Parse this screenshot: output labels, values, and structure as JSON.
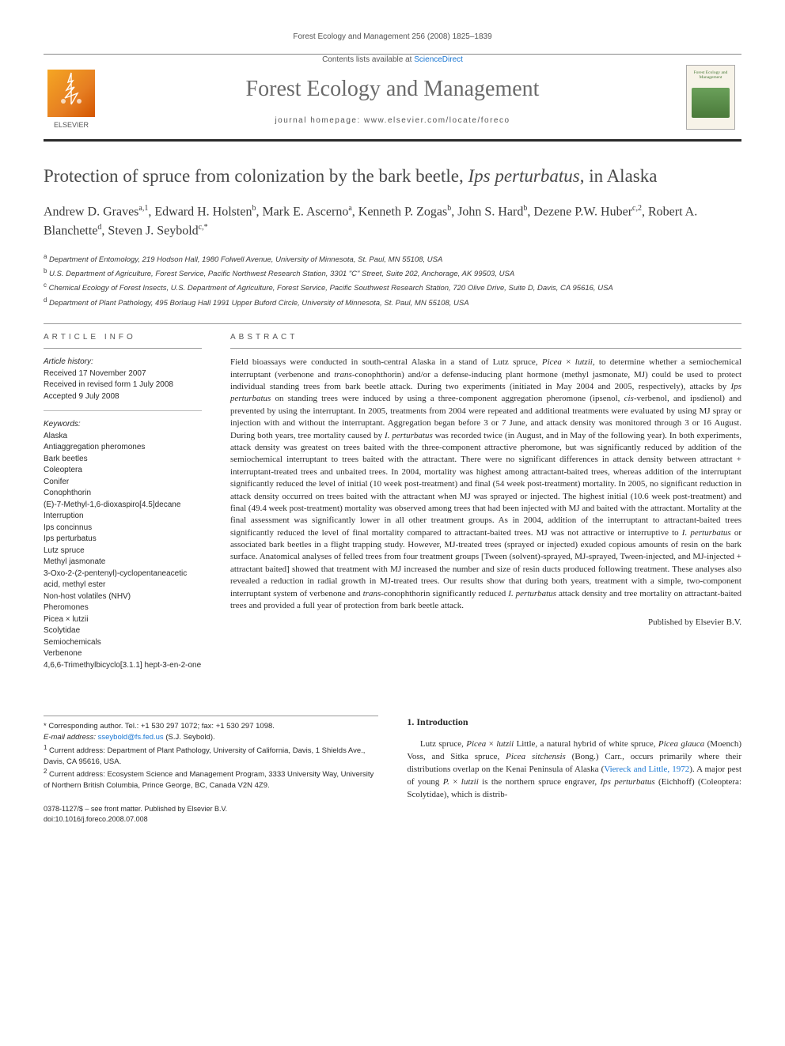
{
  "header": {
    "citation": "Forest Ecology and Management 256 (2008) 1825–1839",
    "contents_prefix": "Contents lists available at ",
    "contents_link": "ScienceDirect",
    "journal_title": "Forest Ecology and Management",
    "homepage": "journal homepage: www.elsevier.com/locate/foreco",
    "publisher": "ELSEVIER",
    "cover_title": "Forest Ecology and Management"
  },
  "title": {
    "pre": "Protection of spruce from colonization by the bark beetle, ",
    "ital": "Ips perturbatus",
    "post": ", in Alaska"
  },
  "authors_html": "Andrew D. Graves<sup>a,1</sup>, Edward H. Holsten<sup>b</sup>, Mark E. Ascerno<sup>a</sup>, Kenneth P. Zogas<sup>b</sup>, John S. Hard<sup>b</sup>, Dezene P.W. Huber<sup>c,2</sup>, Robert A. Blanchette<sup>d</sup>, Steven J. Seybold<sup>c,*</sup>",
  "affils": [
    "<sup>a</sup> Department of Entomology, 219 Hodson Hall, 1980 Folwell Avenue, University of Minnesota, St. Paul, MN 55108, USA",
    "<sup>b</sup> U.S. Department of Agriculture, Forest Service, Pacific Northwest Research Station, 3301 \"C\" Street, Suite 202, Anchorage, AK 99503, USA",
    "<sup>c</sup> Chemical Ecology of Forest Insects, U.S. Department of Agriculture, Forest Service, Pacific Southwest Research Station, 720 Olive Drive, Suite D, Davis, CA 95616, USA",
    "<sup>d</sup> Department of Plant Pathology, 495 Borlaug Hall 1991 Upper Buford Circle, University of Minnesota, St. Paul, MN 55108, USA"
  ],
  "article_info": {
    "head": "ARTICLE INFO",
    "history_head": "Article history:",
    "history": [
      "Received 17 November 2007",
      "Received in revised form 1 July 2008",
      "Accepted 9 July 2008"
    ],
    "keywords_head": "Keywords:",
    "keywords": [
      "Alaska",
      "Antiaggregation pheromones",
      "Bark beetles",
      "Coleoptera",
      "Conifer",
      "Conophthorin",
      "(E)-7-Methyl-1,6-dioxaspiro[4.5]decane",
      "Interruption",
      "Ips concinnus",
      "Ips perturbatus",
      "Lutz spruce",
      "Methyl jasmonate",
      "3-Oxo-2-(2-pentenyl)-cyclopentaneacetic acid, methyl ester",
      "Non-host volatiles (NHV)",
      "Pheromones",
      "Picea × lutzii",
      "Scolytidae",
      "Semiochemicals",
      "Verbenone",
      "4,6,6-Trimethylbicyclo[3.1.1] hept-3-en-2-one"
    ]
  },
  "abstract": {
    "head": "ABSTRACT",
    "text": "Field bioassays were conducted in south-central Alaska in a stand of Lutz spruce, <em>Picea</em> × <em>lutzii</em>, to determine whether a semiochemical interruptant (verbenone and <em>trans</em>-conophthorin) and/or a defense-inducing plant hormone (methyl jasmonate, MJ) could be used to protect individual standing trees from bark beetle attack. During two experiments (initiated in May 2004 and 2005, respectively), attacks by <em>Ips perturbatus</em> on standing trees were induced by using a three-component aggregation pheromone (ipsenol, <em>cis</em>-verbenol, and ipsdienol) and prevented by using the interruptant. In 2005, treatments from 2004 were repeated and additional treatments were evaluated by using MJ spray or injection with and without the interruptant. Aggregation began before 3 or 7 June, and attack density was monitored through 3 or 16 August. During both years, tree mortality caused by <em>I. perturbatus</em> was recorded twice (in August, and in May of the following year). In both experiments, attack density was greatest on trees baited with the three-component attractive pheromone, but was significantly reduced by addition of the semiochemical interruptant to trees baited with the attractant. There were no significant differences in attack density between attractant + interruptant-treated trees and unbaited trees. In 2004, mortality was highest among attractant-baited trees, whereas addition of the interruptant significantly reduced the level of initial (10 week post-treatment) and final (54 week post-treatment) mortality. In 2005, no significant reduction in attack density occurred on trees baited with the attractant when MJ was sprayed or injected. The highest initial (10.6 week post-treatment) and final (49.4 week post-treatment) mortality was observed among trees that had been injected with MJ and baited with the attractant. Mortality at the final assessment was significantly lower in all other treatment groups. As in 2004, addition of the interruptant to attractant-baited trees significantly reduced the level of final mortality compared to attractant-baited trees. MJ was not attractive or interruptive to <em>I. perturbatus</em> or associated bark beetles in a flight trapping study. However, MJ-treated trees (sprayed or injected) exuded copious amounts of resin on the bark surface. Anatomical analyses of felled trees from four treatment groups [Tween (solvent)-sprayed, MJ-sprayed, Tween-injected, and MJ-injected + attractant baited] showed that treatment with MJ increased the number and size of resin ducts produced following treatment. These analyses also revealed a reduction in radial growth in MJ-treated trees. Our results show that during both years, treatment with a simple, two-component interruptant system of verbenone and <em>trans</em>-conophthorin significantly reduced <em>I. perturbatus</em> attack density and tree mortality on attractant-baited trees and provided a full year of protection from bark beetle attack.",
    "published_by": "Published by Elsevier B.V."
  },
  "footnotes": {
    "corr": "* Corresponding author. Tel.: +1 530 297 1072; fax: +1 530 297 1098.",
    "email_label": "E-mail address:",
    "email": "sseybold@fs.fed.us",
    "email_name": "(S.J. Seybold).",
    "n1": "<sup>1</sup> Current address: Department of Plant Pathology, University of California, Davis, 1 Shields Ave., Davis, CA 95616, USA.",
    "n2": "<sup>2</sup> Current address: Ecosystem Science and Management Program, 3333 University Way, University of Northern British Columbia, Prince George, BC, Canada V2N 4Z9."
  },
  "intro": {
    "head": "1. Introduction",
    "text": "Lutz spruce, <em>Picea</em> × <em>lutzii</em> Little, a natural hybrid of white spruce, <em>Picea glauca</em> (Moench) Voss, and Sitka spruce, <em>Picea sitchensis</em> (Bong.) Carr., occurs primarily where their distributions overlap on the Kenai Peninsula of Alaska (<a href=\"#\">Viereck and Little, 1972</a>). A major pest of young <em>P.</em> × <em>lutzii</em> is the northern spruce engraver, <em>Ips perturbatus</em> (Eichhoff) (Coleoptera: Scolytidae), which is distrib-"
  },
  "bottom": {
    "issn": "0378-1127/$ – see front matter. Published by Elsevier B.V.",
    "doi": "doi:10.1016/j.foreco.2008.07.008"
  }
}
